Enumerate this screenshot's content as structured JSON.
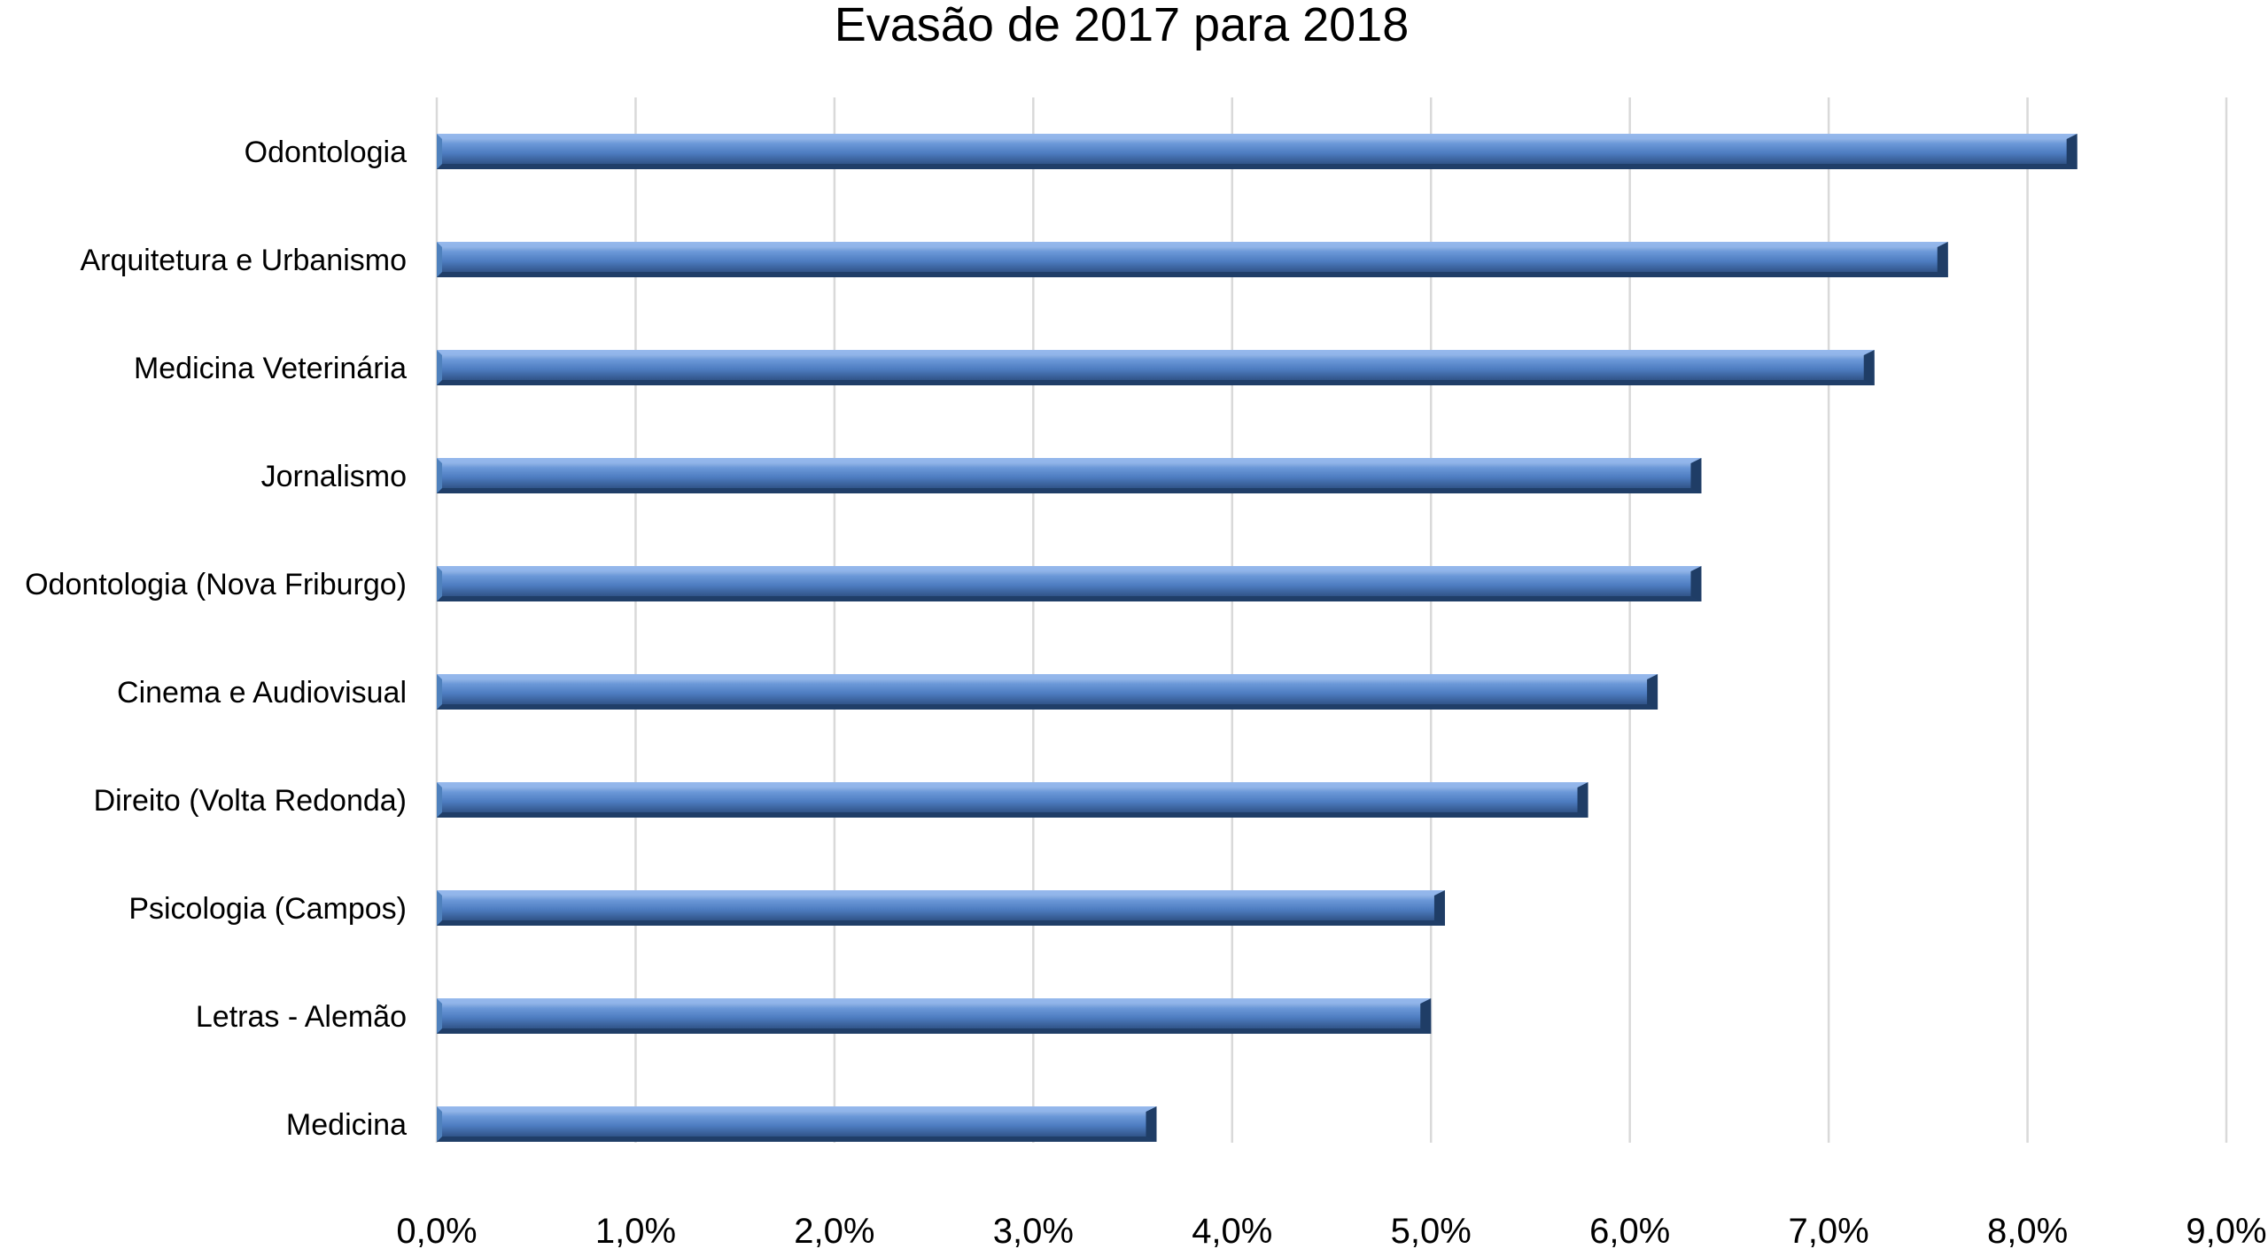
{
  "chart_data": {
    "type": "bar",
    "orientation": "horizontal",
    "title": "Evasão de 2017 para 2018",
    "xlabel": "",
    "ylabel": "",
    "categories": [
      "Odontologia",
      "Arquitetura e Urbanismo",
      "Medicina Veterinária",
      "Jornalismo",
      "Odontologia (Nova Friburgo)",
      "Cinema e Audiovisual",
      "Direito (Volta Redonda)",
      "Psicologia (Campos)",
      "Letras - Alemão",
      "Medicina"
    ],
    "values": [
      8.25,
      7.6,
      7.23,
      6.36,
      6.36,
      6.14,
      5.79,
      5.07,
      5.0,
      3.62
    ],
    "value_unit": "%",
    "xlim": [
      0,
      9
    ],
    "x_ticks": [
      0,
      1,
      2,
      3,
      4,
      5,
      6,
      7,
      8,
      9
    ],
    "x_tick_labels": [
      "0,0%",
      "1,0%",
      "2,0%",
      "3,0%",
      "4,0%",
      "5,0%",
      "6,0%",
      "7,0%",
      "8,0%",
      "9,0%"
    ],
    "grid": "vertical",
    "legend": "none",
    "colors": {
      "bar_light": "#8fb4ea",
      "bar_main": "#4f81bd",
      "bar_dark": "#1f3d66"
    }
  }
}
